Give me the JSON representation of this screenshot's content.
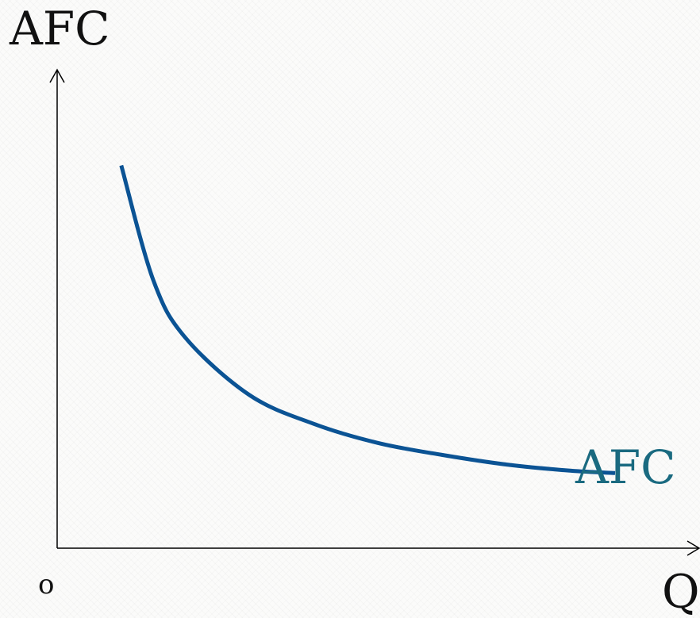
{
  "chart_data": {
    "type": "line",
    "title": "",
    "ylabel": "AFC",
    "xlabel": "Q",
    "origin_label": "o",
    "series": [
      {
        "name": "AFC",
        "color": "#0b5394",
        "label_color": "#1a6a80",
        "shape": "rectangular-hyperbola",
        "x": [
          1.0,
          1.5,
          2.0,
          3.0,
          4.0,
          5.0,
          6.0,
          7.0,
          8.0,
          8.7
        ],
        "y": [
          8.0,
          5.6,
          4.4,
          3.2,
          2.6,
          2.2,
          1.95,
          1.75,
          1.62,
          1.57
        ]
      }
    ],
    "xlim": [
      0,
      10
    ],
    "ylim": [
      0,
      10
    ],
    "grid": false,
    "legend": "none",
    "axis_color": "#000000"
  }
}
